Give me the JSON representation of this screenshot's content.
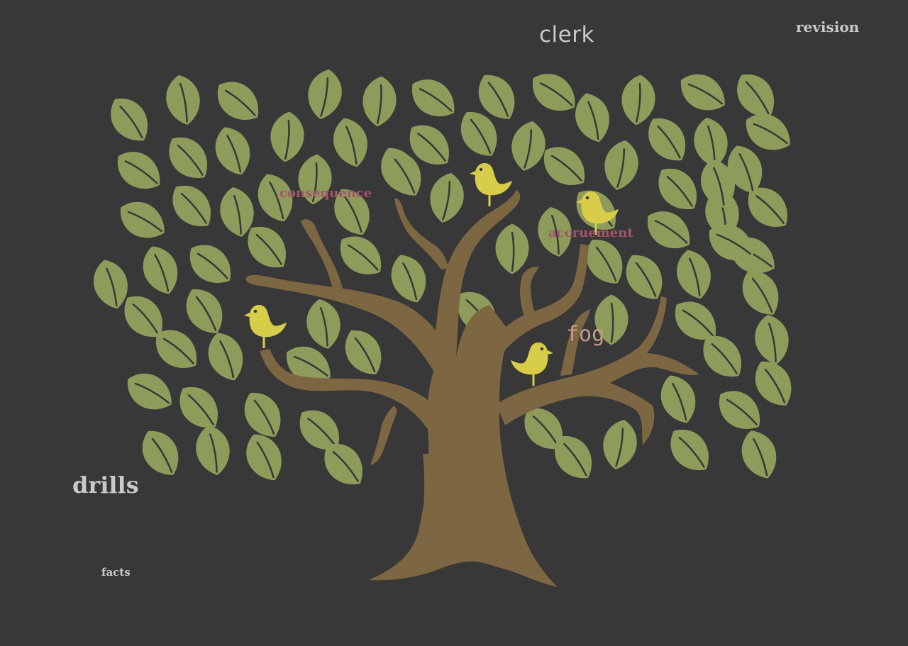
{
  "colors": {
    "background": "#383838",
    "leaf": "#8d9c5b",
    "leaf_vein": "#383838",
    "trunk": "#7d6743",
    "bird": "#d8cd48",
    "bird_eye": "#383838",
    "word_light": "#c9c9c9",
    "word_rose": "#a6546a",
    "word_tan": "#c89a8a"
  },
  "words": {
    "clerk": "clerk",
    "revision": "revision",
    "consequence": "consequence",
    "accruement": "accruement",
    "fog": "fog",
    "drills": "drills",
    "facts": "facts"
  },
  "illustration": {
    "subject": "tree-with-leaves",
    "leaf_count": 96,
    "bird_count": 4
  }
}
